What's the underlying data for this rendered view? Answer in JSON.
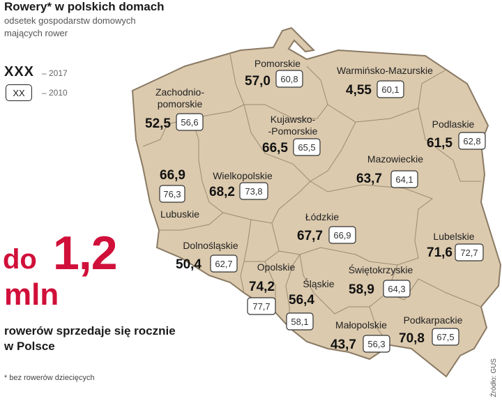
{
  "title": "Rowery* w polskich domach",
  "subtitle_line1": "odsetek gospodarstw domowych",
  "subtitle_line2": "mających rower",
  "legend": {
    "bold_sample": "XXX",
    "bold_year": "– 2017",
    "box_sample": "XX",
    "box_year": "– 2010"
  },
  "highlight": {
    "prefix": "do",
    "number": "1,2",
    "unit": "mln",
    "text_line1": "rowerów sprzedaje się rocznie",
    "text_line2": "w Polsce"
  },
  "footnote": "* bez rowerów dziecięcych",
  "source": "Źródło: GUS",
  "colors": {
    "map_fill": "#dccaae",
    "border": "#8a7a64",
    "accent": "#d0103a"
  },
  "regions": [
    {
      "name_lines": [
        "Pomorskie"
      ],
      "v2017": "57,0",
      "v2010": "60,8"
    },
    {
      "name_lines": [
        "Warmińsko-Mazurskie"
      ],
      "v2017": "4,55",
      "v2010": "60,1"
    },
    {
      "name_lines": [
        "Zachodnio-",
        "pomorskie"
      ],
      "v2017": "52,5",
      "v2010": "56,6"
    },
    {
      "name_lines": [
        "Kujawsko-",
        "-Pomorskie"
      ],
      "v2017": "66,5",
      "v2010": "65,5"
    },
    {
      "name_lines": [
        "Podlaskie"
      ],
      "v2017": "61,5",
      "v2010": "62,8"
    },
    {
      "name_lines": [
        "Wielkopolskie"
      ],
      "v2017": "68,2",
      "v2010": "73,8"
    },
    {
      "name_lines": [
        "Mazowieckie"
      ],
      "v2017": "63,7",
      "v2010": "64,1"
    },
    {
      "name_lines": [
        "Lubuskie"
      ],
      "v2017": "66,9",
      "v2010": "76,3"
    },
    {
      "name_lines": [
        "Łódzkie"
      ],
      "v2017": "67,7",
      "v2010": "66,9"
    },
    {
      "name_lines": [
        "Lubelskie"
      ],
      "v2017": "71,6",
      "v2010": "72,7"
    },
    {
      "name_lines": [
        "Dolnośląskie"
      ],
      "v2017": "50,4",
      "v2010": "62,7"
    },
    {
      "name_lines": [
        "Opolskie"
      ],
      "v2017": "74,2",
      "v2010": "77,7"
    },
    {
      "name_lines": [
        "Śląskie"
      ],
      "v2017": "56,4",
      "v2010": "58,1"
    },
    {
      "name_lines": [
        "Świętokrzyskie"
      ],
      "v2017": "58,9",
      "v2010": "64,3"
    },
    {
      "name_lines": [
        "Małopolskie"
      ],
      "v2017": "43,7",
      "v2010": "56,3"
    },
    {
      "name_lines": [
        "Podkarpackie"
      ],
      "v2017": "70,8",
      "v2010": "67,5"
    }
  ]
}
